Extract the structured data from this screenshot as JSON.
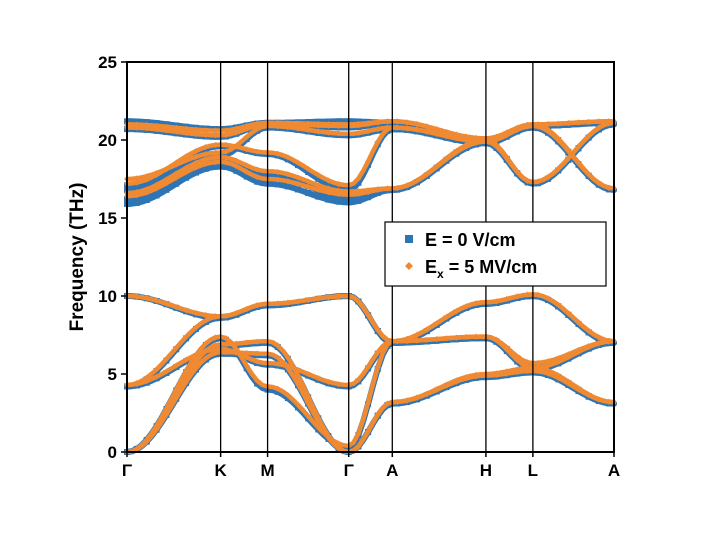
{
  "chart_data": {
    "type": "line",
    "title": "",
    "xlabel": "",
    "ylabel": "Frequency (THz)",
    "ylim": [
      0,
      25
    ],
    "y_ticks": [
      "0",
      "5",
      "10",
      "15",
      "20",
      "25"
    ],
    "y_tick_values": [
      0,
      5,
      10,
      15,
      20,
      25
    ],
    "k_path": [
      "Γ",
      "K",
      "M",
      "Γ",
      "A",
      "H",
      "L",
      "A"
    ],
    "k_positions": [
      0,
      0.666,
      1.0,
      1.577,
      1.887,
      2.553,
      2.887,
      3.464
    ],
    "legend": {
      "placement": "middle-right",
      "entries": [
        {
          "label": "E = 0 V/cm",
          "series": "e0"
        },
        {
          "label_main": "E",
          "label_sub": "x",
          "label_rest": " = 5 MV/cm",
          "series": "ex"
        }
      ]
    },
    "series": [
      {
        "name": "E = 0 V/cm",
        "key": "e0",
        "color": "#2E75B6",
        "marker": "square",
        "bands": [
          [
            [
              0,
              0
            ],
            [
              0.666,
              6.3
            ],
            [
              1.0,
              6.2
            ],
            [
              1.577,
              0
            ],
            [
              1.887,
              3.1
            ],
            [
              2.553,
              4.8
            ],
            [
              2.887,
              5.1
            ],
            [
              3.464,
              3.1
            ]
          ],
          [
            [
              0,
              0
            ],
            [
              0.666,
              6.8
            ],
            [
              1.0,
              7.0
            ],
            [
              1.577,
              0
            ],
            [
              1.887,
              3.1
            ],
            [
              2.553,
              4.9
            ],
            [
              2.887,
              5.3
            ],
            [
              3.464,
              3.1
            ]
          ],
          [
            [
              0,
              0
            ],
            [
              0.666,
              7.3
            ],
            [
              1.0,
              4.0
            ],
            [
              1.577,
              0.3
            ],
            [
              1.887,
              7.0
            ],
            [
              2.553,
              7.3
            ],
            [
              2.887,
              5.3
            ],
            [
              3.464,
              7.0
            ]
          ],
          [
            [
              0,
              4.2
            ],
            [
              0.666,
              6.5
            ],
            [
              1.0,
              5.6
            ],
            [
              1.577,
              4.2
            ],
            [
              1.887,
              7.0
            ],
            [
              2.553,
              7.3
            ],
            [
              2.887,
              5.6
            ],
            [
              3.464,
              7.0
            ]
          ],
          [
            [
              0,
              4.2
            ],
            [
              0.666,
              8.6
            ],
            [
              1.0,
              9.4
            ],
            [
              1.577,
              10.0
            ],
            [
              1.887,
              7.0
            ],
            [
              2.553,
              9.5
            ],
            [
              2.887,
              10.0
            ],
            [
              3.464,
              7.0
            ]
          ],
          [
            [
              0,
              10.0
            ],
            [
              0.666,
              8.6
            ],
            [
              1.0,
              9.4
            ],
            [
              1.577,
              10.0
            ],
            [
              1.887,
              7.0
            ],
            [
              2.553,
              9.5
            ],
            [
              2.887,
              10.0
            ],
            [
              3.464,
              7.0
            ]
          ],
          [
            [
              0,
              15.9
            ],
            [
              0.666,
              18.3
            ],
            [
              1.0,
              17.2
            ],
            [
              1.577,
              16.0
            ],
            [
              1.887,
              16.8
            ],
            [
              2.553,
              19.8
            ],
            [
              2.887,
              20.8
            ],
            [
              3.464,
              16.8
            ]
          ],
          [
            [
              0,
              16.2
            ],
            [
              0.666,
              18.6
            ],
            [
              1.0,
              17.8
            ],
            [
              1.577,
              16.3
            ],
            [
              1.887,
              16.8
            ],
            [
              2.553,
              19.9
            ],
            [
              2.887,
              20.9
            ],
            [
              3.464,
              16.8
            ]
          ],
          [
            [
              0,
              16.8
            ],
            [
              0.666,
              19.6
            ],
            [
              1.0,
              19.1
            ],
            [
              1.577,
              16.8
            ],
            [
              1.887,
              20.7
            ],
            [
              2.553,
              19.9
            ],
            [
              2.887,
              17.2
            ],
            [
              3.464,
              21.0
            ]
          ],
          [
            [
              0,
              17.1
            ],
            [
              0.666,
              19.0
            ],
            [
              1.0,
              20.8
            ],
            [
              1.577,
              20.3
            ],
            [
              1.887,
              20.7
            ],
            [
              2.553,
              19.8
            ],
            [
              2.887,
              17.2
            ],
            [
              3.464,
              21.0
            ]
          ],
          [
            [
              0,
              20.7
            ],
            [
              0.666,
              20.2
            ],
            [
              1.0,
              21.0
            ],
            [
              1.577,
              20.8
            ],
            [
              1.887,
              21.1
            ],
            [
              2.553,
              20.0
            ],
            [
              2.887,
              20.9
            ],
            [
              3.464,
              21.1
            ]
          ],
          [
            [
              0,
              21.2
            ],
            [
              0.666,
              20.7
            ],
            [
              1.0,
              21.1
            ],
            [
              1.577,
              21.2
            ],
            [
              1.887,
              21.1
            ],
            [
              2.553,
              20.0
            ],
            [
              2.887,
              20.9
            ],
            [
              3.464,
              21.1
            ]
          ]
        ]
      },
      {
        "name": "Ex = 5 MV/cm",
        "key": "ex",
        "color": "#F08A32",
        "marker": "diamond",
        "bands": [
          [
            [
              0,
              0
            ],
            [
              0.666,
              6.4
            ],
            [
              1.0,
              6.3
            ],
            [
              1.577,
              0
            ],
            [
              1.887,
              3.2
            ],
            [
              2.553,
              4.9
            ],
            [
              2.887,
              5.2
            ],
            [
              3.464,
              3.2
            ]
          ],
          [
            [
              0,
              0
            ],
            [
              0.666,
              6.9
            ],
            [
              1.0,
              7.1
            ],
            [
              1.577,
              0
            ],
            [
              1.887,
              3.2
            ],
            [
              2.553,
              5.0
            ],
            [
              2.887,
              5.4
            ],
            [
              3.464,
              3.2
            ]
          ],
          [
            [
              0,
              0
            ],
            [
              0.666,
              7.4
            ],
            [
              1.0,
              4.2
            ],
            [
              1.577,
              0.4
            ],
            [
              1.887,
              7.1
            ],
            [
              2.553,
              7.4
            ],
            [
              2.887,
              5.4
            ],
            [
              3.464,
              7.1
            ]
          ],
          [
            [
              0,
              4.3
            ],
            [
              0.666,
              6.6
            ],
            [
              1.0,
              5.7
            ],
            [
              1.577,
              4.3
            ],
            [
              1.887,
              7.1
            ],
            [
              2.553,
              7.4
            ],
            [
              2.887,
              5.7
            ],
            [
              3.464,
              7.1
            ]
          ],
          [
            [
              0,
              4.3
            ],
            [
              0.666,
              8.7
            ],
            [
              1.0,
              9.5
            ],
            [
              1.577,
              10.0
            ],
            [
              1.887,
              7.1
            ],
            [
              2.553,
              9.6
            ],
            [
              2.887,
              10.1
            ],
            [
              3.464,
              7.1
            ]
          ],
          [
            [
              0,
              10.0
            ],
            [
              0.666,
              8.7
            ],
            [
              1.0,
              9.5
            ],
            [
              1.577,
              10.0
            ],
            [
              1.887,
              7.1
            ],
            [
              2.553,
              9.6
            ],
            [
              2.887,
              10.1
            ],
            [
              3.464,
              7.1
            ]
          ],
          [
            [
              0,
              16.4
            ],
            [
              0.666,
              18.6
            ],
            [
              1.0,
              17.5
            ],
            [
              1.577,
              16.5
            ],
            [
              1.887,
              16.9
            ],
            [
              2.553,
              19.9
            ],
            [
              2.887,
              20.9
            ],
            [
              3.464,
              16.9
            ]
          ],
          [
            [
              0,
              16.6
            ],
            [
              0.666,
              18.9
            ],
            [
              1.0,
              18.0
            ],
            [
              1.577,
              16.7
            ],
            [
              1.887,
              16.9
            ],
            [
              2.553,
              20.0
            ],
            [
              2.887,
              21.0
            ],
            [
              3.464,
              16.9
            ]
          ],
          [
            [
              0,
              17.2
            ],
            [
              0.666,
              19.7
            ],
            [
              1.0,
              19.2
            ],
            [
              1.577,
              17.1
            ],
            [
              1.887,
              20.8
            ],
            [
              2.553,
              20.0
            ],
            [
              2.887,
              17.3
            ],
            [
              3.464,
              21.1
            ]
          ],
          [
            [
              0,
              17.5
            ],
            [
              0.666,
              19.2
            ],
            [
              1.0,
              20.9
            ],
            [
              1.577,
              20.4
            ],
            [
              1.887,
              20.8
            ],
            [
              2.553,
              19.9
            ],
            [
              2.887,
              17.3
            ],
            [
              3.464,
              21.1
            ]
          ],
          [
            [
              0,
              20.8
            ],
            [
              0.666,
              20.3
            ],
            [
              1.0,
              21.0
            ],
            [
              1.577,
              20.9
            ],
            [
              1.887,
              21.2
            ],
            [
              2.553,
              20.1
            ],
            [
              2.887,
              21.0
            ],
            [
              3.464,
              21.2
            ]
          ],
          [
            [
              0,
              21.0
            ],
            [
              0.666,
              20.6
            ],
            [
              1.0,
              21.1
            ],
            [
              1.577,
              21.0
            ],
            [
              1.887,
              21.2
            ],
            [
              2.553,
              20.1
            ],
            [
              2.887,
              21.0
            ],
            [
              3.464,
              21.2
            ]
          ]
        ]
      }
    ]
  }
}
